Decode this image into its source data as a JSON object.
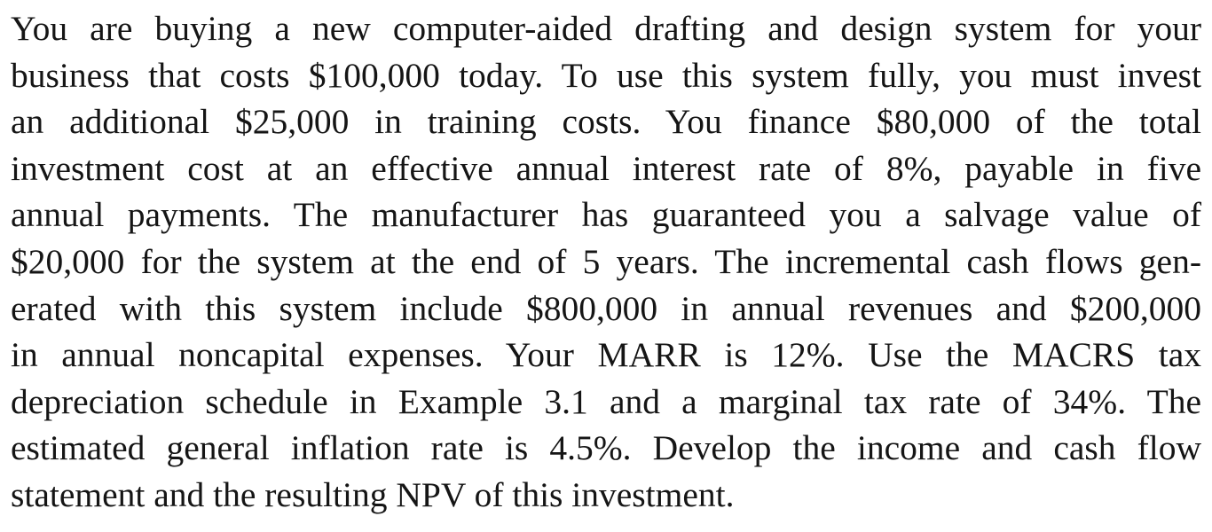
{
  "document": {
    "lines": [
      "You are buying a new computer-aided drafting and design system for your",
      "business that costs $100,000 today. To use this system fully, you must invest",
      "an additional $25,000 in training costs. You finance $80,000 of the total",
      "investment cost at an effective annual interest rate of 8%, payable in five",
      "annual payments. The manufacturer has guaranteed you a salvage value of",
      "$20,000 for the system at the end of 5 years. The incremental cash flows gen-",
      "erated with this system include $800,000 in annual revenues and $200,000",
      "in annual noncapital expenses. Your MARR is 12%. Use the MACRS tax",
      "depreciation schedule in Example 3.1 and a marginal tax rate of 34%. The",
      "estimated general inflation rate is 4.5%. Develop the income and cash flow",
      "statement and the resulting NPV of this investment."
    ]
  }
}
